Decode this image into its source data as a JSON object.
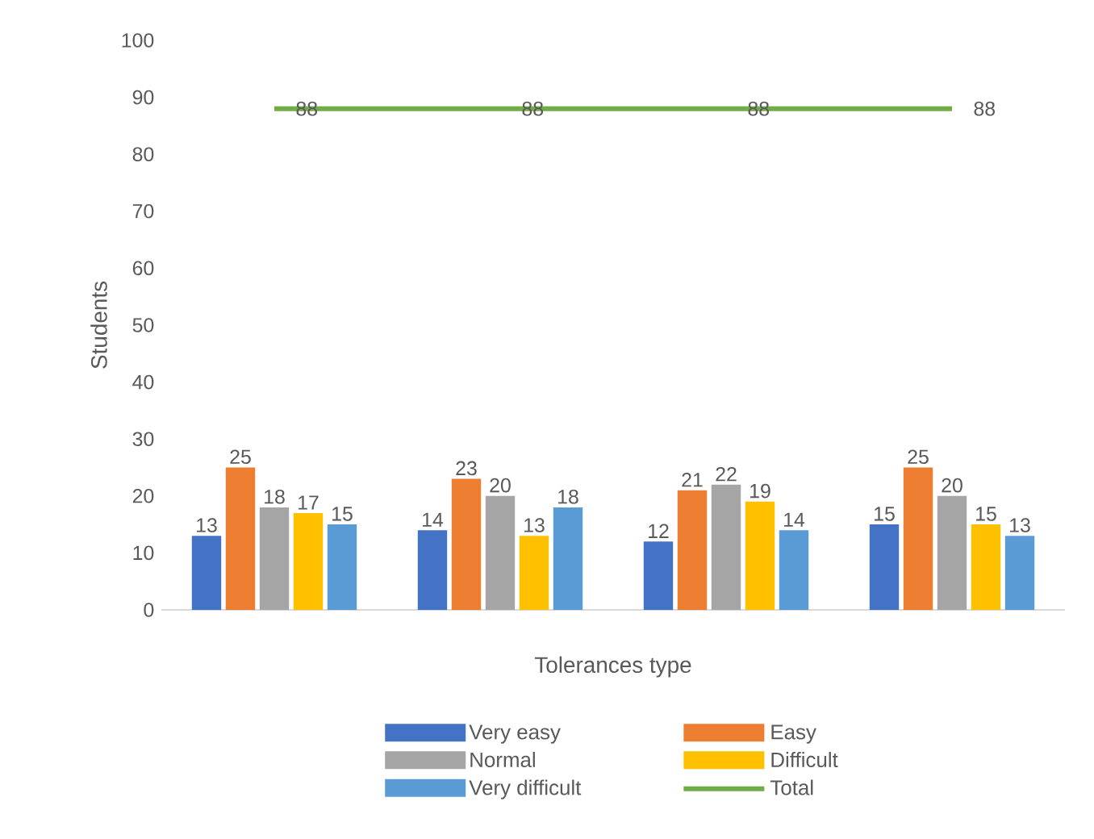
{
  "chart_data": {
    "type": "bar",
    "ylabel": "Students",
    "xlabel": "Tolerances type",
    "categories": [
      null,
      null,
      null,
      null
    ],
    "ylim": [
      0,
      100
    ],
    "yticks": [
      0,
      10,
      20,
      30,
      40,
      50,
      60,
      70,
      80,
      90,
      100
    ],
    "series": [
      {
        "name": "Very easy",
        "color": "#4472c4",
        "values": [
          13,
          14,
          12,
          15
        ]
      },
      {
        "name": "Easy",
        "color": "#ed7d31",
        "values": [
          25,
          23,
          21,
          25
        ]
      },
      {
        "name": "Normal",
        "color": "#a5a5a5",
        "values": [
          18,
          20,
          22,
          20
        ]
      },
      {
        "name": "Difficult",
        "color": "#ffc000",
        "values": [
          17,
          13,
          19,
          15
        ]
      },
      {
        "name": "Very difficult",
        "color": "#5b9bd5",
        "values": [
          15,
          18,
          14,
          13
        ]
      },
      {
        "name": "Total",
        "type": "line",
        "color": "#70ad47",
        "values": [
          88,
          88,
          88,
          88
        ]
      }
    ],
    "data_labels": true,
    "legend": "bottom"
  }
}
